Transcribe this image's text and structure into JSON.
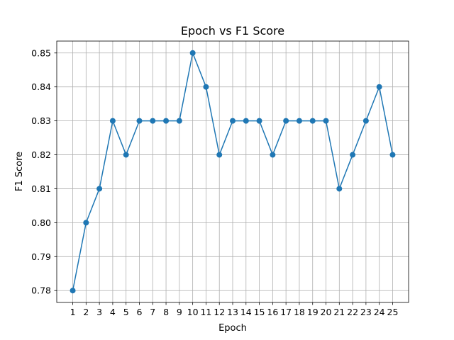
{
  "chart_data": {
    "type": "line",
    "title": "Epoch vs F1 Score",
    "xlabel": "Epoch",
    "ylabel": "F1 Score",
    "x": [
      1,
      2,
      3,
      4,
      5,
      6,
      7,
      8,
      9,
      10,
      11,
      12,
      13,
      14,
      15,
      16,
      17,
      18,
      19,
      20,
      21,
      22,
      23,
      24,
      25
    ],
    "series": [
      {
        "values": [
          0.78,
          0.8,
          0.81,
          0.83,
          0.82,
          0.83,
          0.83,
          0.83,
          0.83,
          0.85,
          0.84,
          0.82,
          0.83,
          0.83,
          0.83,
          0.82,
          0.83,
          0.83,
          0.83,
          0.83,
          0.81,
          0.82,
          0.83,
          0.84,
          0.82
        ],
        "color": "#1f77b4",
        "marker": "circle"
      }
    ],
    "xticks": [
      "1",
      "2",
      "3",
      "4",
      "5",
      "6",
      "7",
      "8",
      "9",
      "10",
      "11",
      "12",
      "13",
      "14",
      "15",
      "16",
      "17",
      "18",
      "19",
      "20",
      "21",
      "22",
      "23",
      "24",
      "25"
    ],
    "yticks": [
      "0.78",
      "0.79",
      "0.80",
      "0.81",
      "0.82",
      "0.83",
      "0.84",
      "0.85"
    ],
    "ytick_values": [
      0.78,
      0.79,
      0.8,
      0.81,
      0.82,
      0.83,
      0.84,
      0.85
    ],
    "xlim": [
      -0.2,
      26.2
    ],
    "ylim": [
      0.7765,
      0.8535
    ],
    "grid": true,
    "legend": false
  }
}
